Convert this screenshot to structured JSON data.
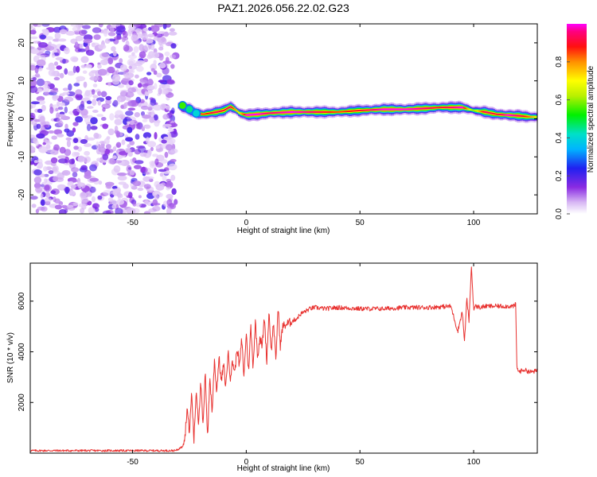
{
  "title": "PAZ1.2026.056.22.02.G23",
  "chart_data": [
    {
      "type": "heatmap",
      "name": "spectrogram",
      "xlabel": "Height of straight line (km)",
      "ylabel": "Frequency (Hz)",
      "xlim": [
        -95,
        128
      ],
      "ylim": [
        -25,
        25
      ],
      "xticks": [
        -50,
        0,
        50,
        100
      ],
      "xtick_labels": [
        "-50",
        "0",
        "50",
        "100"
      ],
      "yticks": [
        -20,
        -10,
        0,
        10,
        20
      ],
      "ytick_labels": [
        "-20",
        "-10",
        "0",
        "10",
        "20"
      ],
      "noise_region": [
        -95,
        -31
      ],
      "ridge_x": [
        -30,
        -28,
        -25,
        -22,
        -19,
        -16,
        -13,
        -10,
        -7,
        -5,
        -3,
        0,
        5,
        10,
        20,
        30,
        40,
        50,
        60,
        70,
        80,
        85,
        90,
        95,
        98,
        100,
        105,
        110,
        115,
        120,
        125,
        128
      ],
      "ridge_freq": [
        3.5,
        3.0,
        2.5,
        1.5,
        1.2,
        1.5,
        1.8,
        2.2,
        3.2,
        2.5,
        1.5,
        1.0,
        1.2,
        1.5,
        1.8,
        1.8,
        1.8,
        2.2,
        2.5,
        2.5,
        2.8,
        3.0,
        3.0,
        3.0,
        2.5,
        2.2,
        1.8,
        1.2,
        1.0,
        0.8,
        0.5,
        0.5
      ],
      "ridge_amp": [
        0.45,
        0.7,
        0.95,
        0.9,
        0.85,
        0.9,
        0.95,
        0.9,
        0.95,
        0.8,
        0.7,
        1.0,
        1.0,
        0.95,
        1.0,
        0.95,
        0.85,
        0.9,
        1.0,
        1.0,
        0.95,
        0.9,
        0.95,
        1.0,
        0.7,
        0.6,
        0.95,
        0.9,
        1.0,
        0.95,
        0.8,
        0.7
      ]
    },
    {
      "type": "colorbar",
      "name": "amplitude-colorbar",
      "label": "Normalized spectral amplitude",
      "range": [
        0,
        1
      ],
      "ticks": [
        0.0,
        0.2,
        0.4,
        0.6,
        0.8
      ],
      "tick_labels": [
        "0.0",
        "0.2",
        "0.4",
        "0.6",
        "0.8"
      ]
    },
    {
      "type": "line",
      "name": "snr",
      "xlabel": "Height of straight line (km)",
      "ylabel": "SNR (10 * v/v)",
      "xlim": [
        -95,
        128
      ],
      "ylim": [
        0,
        7500
      ],
      "xticks": [
        -50,
        0,
        50,
        100
      ],
      "xtick_labels": [
        "-50",
        "0",
        "50",
        "100"
      ],
      "yticks": [
        2000,
        4000,
        6000
      ],
      "ytick_labels": [
        "2000",
        "4000",
        "6000"
      ],
      "color": "#e8312f",
      "x": [
        -95,
        -31,
        -29,
        -27,
        -26,
        -25,
        -24,
        -23,
        -22,
        -21,
        -20,
        -19,
        -18,
        -17,
        -16,
        -15,
        -14,
        -13,
        -12,
        -11,
        -10,
        -9,
        -8,
        -7,
        -6,
        -5,
        -4,
        -3,
        -2,
        -1,
        0,
        1,
        2,
        3,
        4,
        5,
        6,
        7,
        8,
        9,
        10,
        11,
        12,
        13,
        14,
        15,
        16,
        18,
        20,
        22,
        24,
        26,
        28,
        30,
        35,
        40,
        50,
        60,
        70,
        80,
        90,
        93,
        95,
        96,
        97,
        98,
        99,
        100,
        101,
        103,
        105,
        110,
        115,
        118,
        118.5,
        119,
        120,
        122,
        125,
        128
      ],
      "values": [
        100,
        100,
        200,
        600,
        1800,
        800,
        2400,
        500,
        2500,
        1200,
        2800,
        1000,
        3200,
        600,
        3000,
        1600,
        3700,
        2400,
        3800,
        2800,
        3500,
        2600,
        4000,
        3000,
        3600,
        3200,
        4200,
        3400,
        4500,
        3000,
        4800,
        3200,
        5000,
        3400,
        5200,
        3800,
        4600,
        4200,
        5400,
        3600,
        5600,
        4000,
        5200,
        3600,
        5800,
        4200,
        5000,
        5100,
        5200,
        5300,
        5500,
        5600,
        5700,
        5750,
        5700,
        5750,
        5700,
        5700,
        5750,
        5750,
        5800,
        4800,
        5600,
        4400,
        6100,
        5200,
        7400,
        5700,
        5800,
        5750,
        5800,
        5800,
        5800,
        5800,
        5900,
        3400,
        3200,
        3300,
        3200,
        3250
      ]
    }
  ]
}
